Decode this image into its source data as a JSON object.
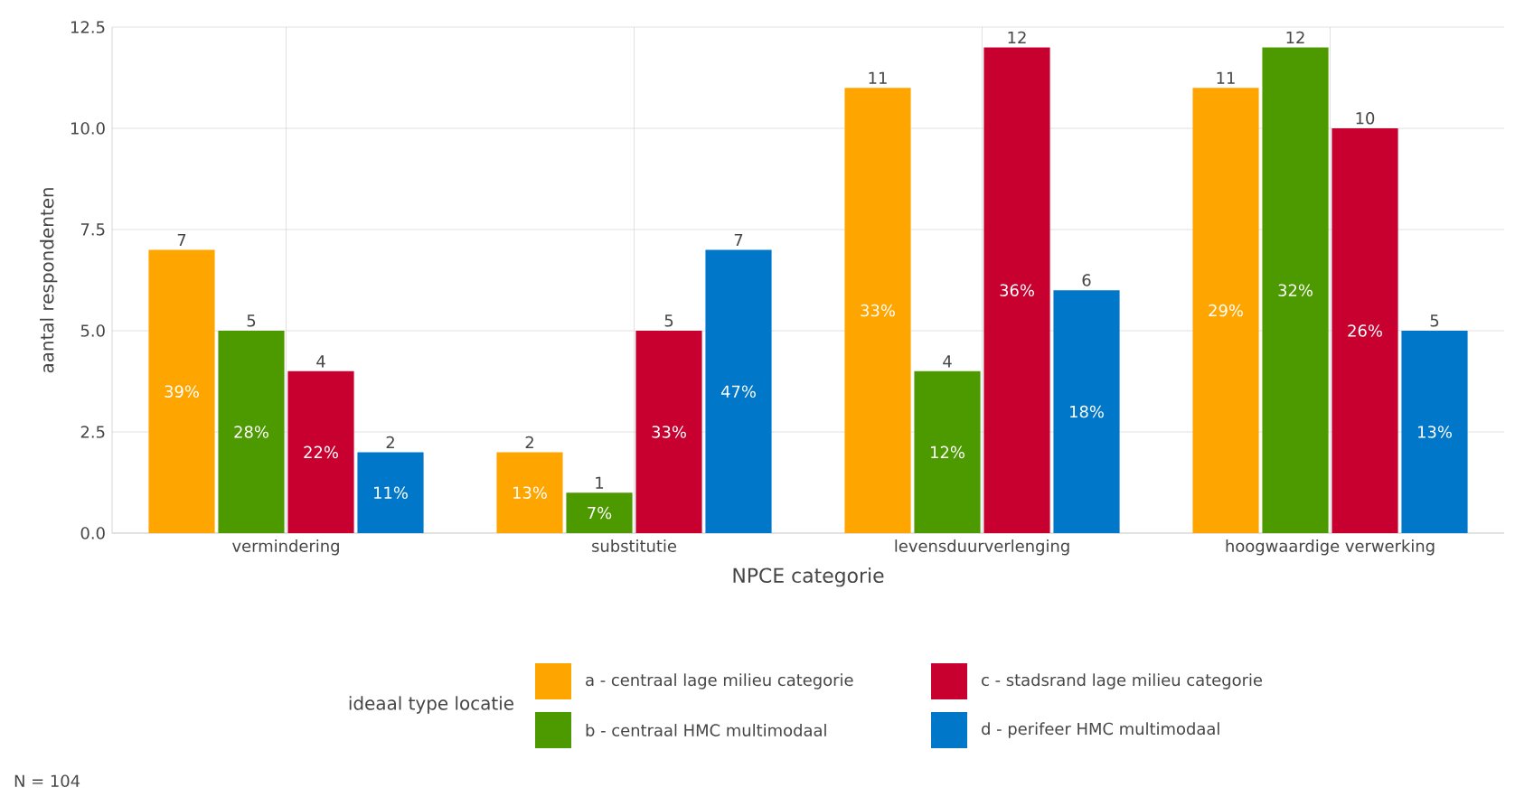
{
  "chart_data": {
    "type": "bar",
    "xlabel": "NPCE categorie",
    "ylabel": "aantal respondenten",
    "legend_title": "ideaal type locatie",
    "categories": [
      "vermindering",
      "substitutie",
      "levensduurverlenging",
      "hoogwaardige verwerking"
    ],
    "series": [
      {
        "name": "a - centraal lage milieu categorie",
        "color": "#ffa500",
        "values": [
          7,
          2,
          11,
          11
        ],
        "value_labels": [
          "7",
          "2",
          "11",
          "11"
        ]
      },
      {
        "name": "b - centraal HMC multimodaal",
        "color": "#4c9900",
        "values": [
          5,
          1,
          4,
          12
        ],
        "value_labels": [
          "5",
          "1",
          "4",
          "12"
        ]
      },
      {
        "name": "c - stadsrand lage milieu categorie",
        "color": "#c8002f",
        "values": [
          4,
          5,
          12,
          10
        ],
        "value_labels": [
          "4",
          "5",
          "12",
          "10"
        ]
      },
      {
        "name": "d - perifeer HMC multimodaal",
        "color": "#0077c8",
        "values": [
          2,
          7,
          6,
          5
        ],
        "value_labels": [
          "2",
          "7",
          "6",
          "5"
        ]
      }
    ],
    "ylim": [
      0,
      12.5
    ],
    "yticks": [
      {
        "value": 0,
        "label": "0.0"
      },
      {
        "value": 2.5,
        "label": "2.5"
      },
      {
        "value": 5,
        "label": "5.0"
      },
      {
        "value": 7.5,
        "label": "7.5"
      },
      {
        "value": 10,
        "label": "10.0"
      },
      {
        "value": 12.5,
        "label": "12.5"
      }
    ],
    "grid": true,
    "legend": "bottom",
    "data_labels": true,
    "annotations": [
      "39%",
      "28%",
      "22%",
      "11%",
      "13%",
      "7%",
      "33%",
      "47%",
      "33%",
      "12%",
      "36%",
      "18%",
      "29%",
      "32%",
      "26%",
      "13%",
      "N = 104"
    ]
  }
}
